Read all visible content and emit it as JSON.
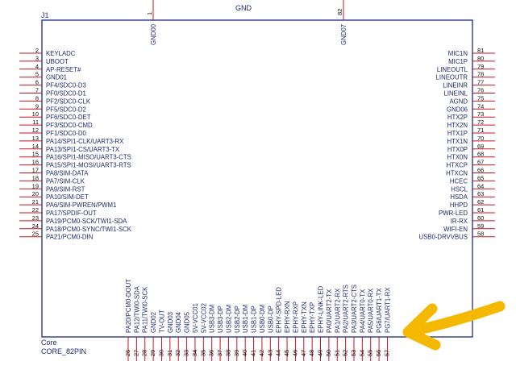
{
  "component": {
    "ref": "J1",
    "group": "Core",
    "part": "CORE_82PIN",
    "top_net": "GND"
  },
  "top_pins": [
    {
      "num": "1",
      "name": "GND00"
    },
    {
      "num": "82",
      "name": "GND07"
    }
  ],
  "left_pins": [
    {
      "num": "2",
      "name": "KEYLADC"
    },
    {
      "num": "3",
      "name": "UBOOT"
    },
    {
      "num": "4",
      "name": "AP-RESET#"
    },
    {
      "num": "5",
      "name": "GND01"
    },
    {
      "num": "6",
      "name": "PF4/SDC0-D3"
    },
    {
      "num": "7",
      "name": "PF0/SDC0-D1"
    },
    {
      "num": "8",
      "name": "PF2/SDC0-CLK"
    },
    {
      "num": "9",
      "name": "PF5/SDC0-D2"
    },
    {
      "num": "10",
      "name": "PF6/SDC0-DET"
    },
    {
      "num": "11",
      "name": "PF3/SDC0-CMD"
    },
    {
      "num": "12",
      "name": "PF1/SDC0-D0"
    },
    {
      "num": "13",
      "name": "PA14/SPI1-CLK/UART3-RX"
    },
    {
      "num": "14",
      "name": "PA13/SPI1-CS/UART3-TX"
    },
    {
      "num": "15",
      "name": "PA16/SPI1-MISO/UART3-CTS"
    },
    {
      "num": "16",
      "name": "PA15/SPI1-MOSI/UART3-RTS"
    },
    {
      "num": "17",
      "name": "PA8/SIM-DATA"
    },
    {
      "num": "18",
      "name": "PA7/SIM-CLK"
    },
    {
      "num": "19",
      "name": "PA9/SIM-RST"
    },
    {
      "num": "20",
      "name": "PA10/SIM-DET"
    },
    {
      "num": "21",
      "name": "PA6/SIM-PWREN/PWM1"
    },
    {
      "num": "22",
      "name": "PA17/SPDIF-OUT"
    },
    {
      "num": "23",
      "name": "PA19/PCM0-SCK/TWI1-SDA"
    },
    {
      "num": "24",
      "name": "PA18/PCM0-SYNC/TWI1-SCK"
    },
    {
      "num": "25",
      "name": "PA21/PCM0-DIN"
    }
  ],
  "right_pins": [
    {
      "num": "81",
      "name": "MIC1N"
    },
    {
      "num": "80",
      "name": "MIC1P"
    },
    {
      "num": "79",
      "name": "LINEOUTL"
    },
    {
      "num": "78",
      "name": "LINEOUTR"
    },
    {
      "num": "77",
      "name": "LINEINR"
    },
    {
      "num": "76",
      "name": "LINEINL"
    },
    {
      "num": "75",
      "name": "AGND"
    },
    {
      "num": "74",
      "name": "GND06"
    },
    {
      "num": "73",
      "name": "HTX2P"
    },
    {
      "num": "72",
      "name": "HTX2N"
    },
    {
      "num": "71",
      "name": "HTX1P"
    },
    {
      "num": "70",
      "name": "HTX1N"
    },
    {
      "num": "69",
      "name": "HTX0P"
    },
    {
      "num": "68",
      "name": "HTX0N"
    },
    {
      "num": "67",
      "name": "HTXCP"
    },
    {
      "num": "66",
      "name": "HTXCN"
    },
    {
      "num": "65",
      "name": "HCEC"
    },
    {
      "num": "64",
      "name": "HSCL"
    },
    {
      "num": "63",
      "name": "HSDA"
    },
    {
      "num": "62",
      "name": "HHPD"
    },
    {
      "num": "61",
      "name": "PWR-LED"
    },
    {
      "num": "60",
      "name": "IR-RX"
    },
    {
      "num": "59",
      "name": "WIFI-EN"
    },
    {
      "num": "58",
      "name": "USB0-DRVVBUS"
    }
  ],
  "bottom_pins": [
    {
      "num": "26",
      "name": "PA20/PCM0-DOUT"
    },
    {
      "num": "27",
      "name": "PA12/TWI0-SDA"
    },
    {
      "num": "28",
      "name": "PA11/TWI0-SCK"
    },
    {
      "num": "29",
      "name": "GND02"
    },
    {
      "num": "30",
      "name": "TV-OUT"
    },
    {
      "num": "31",
      "name": "GND03"
    },
    {
      "num": "32",
      "name": "GND04"
    },
    {
      "num": "33",
      "name": "GND05"
    },
    {
      "num": "34",
      "name": "5V-VCC01"
    },
    {
      "num": "35",
      "name": "5V-VCC02"
    },
    {
      "num": "36",
      "name": "USB3-DM"
    },
    {
      "num": "37",
      "name": "USB3-DP"
    },
    {
      "num": "38",
      "name": "USB2-DM"
    },
    {
      "num": "39",
      "name": "USB2-DP"
    },
    {
      "num": "40",
      "name": "USB1-DM"
    },
    {
      "num": "41",
      "name": "USB1-DP"
    },
    {
      "num": "42",
      "name": "USB0-DM"
    },
    {
      "num": "43",
      "name": "USB0-DP"
    },
    {
      "num": "44",
      "name": "EPHY-SPD-LED"
    },
    {
      "num": "45",
      "name": "EPHY-RXN"
    },
    {
      "num": "46",
      "name": "EPHY-RXP"
    },
    {
      "num": "47",
      "name": "EPHY-TXN"
    },
    {
      "num": "48",
      "name": "EPHY-TXP"
    },
    {
      "num": "49",
      "name": "EPHY-LINK-LED"
    },
    {
      "num": "50",
      "name": "PA0/UART2-TX"
    },
    {
      "num": "51",
      "name": "PA1/UART2-RX"
    },
    {
      "num": "52",
      "name": "PA2/UART2-RTS"
    },
    {
      "num": "53",
      "name": "PA3/UART2-CTS"
    },
    {
      "num": "54",
      "name": "PA4/UART0-TX"
    },
    {
      "num": "55",
      "name": "PA5/UART0-RX"
    },
    {
      "num": "56",
      "name": "PG6/UART1-TX"
    },
    {
      "num": "57",
      "name": "PG7/UART1-RX"
    }
  ],
  "colors": {
    "body_outline": "#2b3a8c",
    "pin_line": "#c8141e",
    "label_text": "#1c2a6e",
    "pin_number": "#111111",
    "arrow": "#f5b800"
  }
}
